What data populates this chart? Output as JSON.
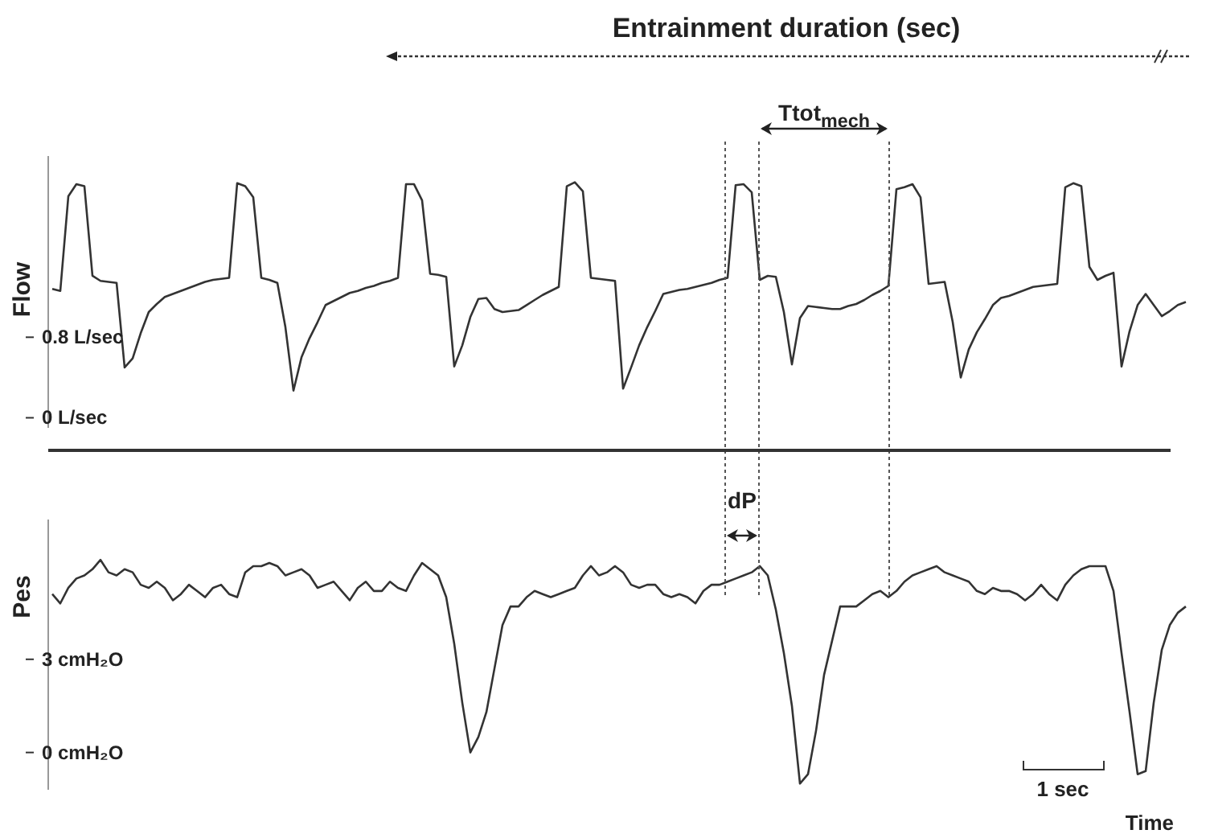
{
  "chart_data": [
    {
      "type": "line",
      "ylabel": "Flow",
      "annotations": [
        "Entrainment duration (sec)",
        "Ttot$_{mech}$"
      ],
      "ylim": [
        -0.1,
        2.6
      ],
      "yticks": [
        {
          "value": 0.8,
          "label": "0.8 L/sec"
        },
        {
          "value": 0,
          "label": "0 L/sec"
        }
      ],
      "tick_labels": "y",
      "line_style": "solid",
      "categories": [
        null,
        null,
        null,
        null,
        null,
        null,
        null,
        null,
        null,
        null,
        null,
        null,
        null,
        null,
        null,
        null,
        null,
        null,
        null,
        null,
        null,
        null,
        null,
        null,
        null,
        null,
        null,
        null,
        null,
        null,
        null,
        null,
        null,
        null,
        null,
        null,
        null,
        null,
        null,
        null,
        null,
        null,
        null,
        null,
        null,
        null,
        null,
        null,
        null,
        null,
        null,
        null,
        null,
        null,
        null,
        null,
        null,
        null,
        null,
        null,
        null,
        null,
        null,
        null,
        null,
        null,
        null,
        null,
        null,
        null,
        null,
        null,
        null,
        null,
        null,
        null,
        null,
        null,
        null,
        null,
        null,
        null,
        null,
        null,
        null,
        null,
        null,
        null,
        null,
        null,
        null,
        null,
        null,
        null,
        null,
        null,
        null,
        null,
        null,
        null,
        null,
        null,
        null,
        null,
        null,
        null,
        null,
        null,
        null,
        null,
        null,
        null,
        null,
        null,
        null,
        null,
        null,
        null,
        null,
        null,
        null,
        null,
        null,
        null,
        null,
        null,
        null,
        null,
        null,
        null,
        null,
        null,
        null,
        null,
        null,
        null,
        null,
        null,
        null,
        null,
        null,
        null
      ],
      "series": [
        {
          "color": "#333333",
          "values": [
            1.28,
            1.26,
            2.2,
            2.32,
            2.3,
            1.41,
            1.36,
            1.35,
            1.34,
            0.5,
            0.59,
            0.84,
            1.05,
            1.13,
            1.2,
            1.23,
            1.26,
            1.29,
            1.32,
            1.35,
            1.37,
            1.38,
            1.39,
            2.33,
            2.3,
            2.19,
            1.39,
            1.37,
            1.34,
            0.9,
            0.27,
            0.6,
            0.79,
            0.95,
            1.12,
            1.16,
            1.2,
            1.24,
            1.26,
            1.29,
            1.31,
            1.34,
            1.36,
            1.39,
            2.32,
            2.32,
            2.16,
            1.43,
            1.42,
            1.4,
            0.51,
            0.72,
            1.0,
            1.18,
            1.19,
            1.08,
            1.05,
            1.06,
            1.07,
            1.12,
            1.17,
            1.22,
            1.26,
            1.3,
            2.3,
            2.34,
            2.25,
            1.39,
            1.38,
            1.37,
            1.36,
            0.29,
            0.5,
            0.72,
            0.9,
            1.06,
            1.23,
            1.25,
            1.27,
            1.28,
            1.3,
            1.32,
            1.34,
            1.37,
            1.39,
            2.31,
            2.32,
            2.24,
            1.37,
            1.41,
            1.4,
            1.05,
            0.53,
            0.99,
            1.11,
            1.1,
            1.09,
            1.08,
            1.08,
            1.11,
            1.13,
            1.17,
            1.22,
            1.26,
            1.31,
            2.27,
            2.29,
            2.32,
            2.19,
            1.33,
            1.34,
            1.35,
            0.95,
            0.4,
            0.68,
            0.85,
            0.98,
            1.12,
            1.19,
            1.21,
            1.24,
            1.27,
            1.3,
            1.31,
            1.32,
            1.33,
            2.29,
            2.33,
            2.3,
            1.5,
            1.37,
            1.41,
            1.44,
            0.51,
            0.86,
            1.12,
            1.23,
            1.12,
            1.01,
            1.06,
            1.12,
            1.15
          ]
        }
      ]
    },
    {
      "type": "line",
      "ylabel": "Pes",
      "xlabel": "Time",
      "annotations": [
        "dP",
        "1 sec"
      ],
      "ylim": [
        -1.2,
        7.5
      ],
      "yticks": [
        {
          "value": 3,
          "label": "3  cmH₂O"
        },
        {
          "value": 0,
          "label": "0  cmH₂O"
        }
      ],
      "tick_labels": "y",
      "line_style": "solid",
      "categories": [
        null,
        null,
        null,
        null,
        null,
        null,
        null,
        null,
        null,
        null,
        null,
        null,
        null,
        null,
        null,
        null,
        null,
        null,
        null,
        null,
        null,
        null,
        null,
        null,
        null,
        null,
        null,
        null,
        null,
        null,
        null,
        null,
        null,
        null,
        null,
        null,
        null,
        null,
        null,
        null,
        null,
        null,
        null,
        null,
        null,
        null,
        null,
        null,
        null,
        null,
        null,
        null,
        null,
        null,
        null,
        null,
        null,
        null,
        null,
        null,
        null,
        null,
        null,
        null,
        null,
        null,
        null,
        null,
        null,
        null,
        null,
        null,
        null,
        null,
        null,
        null,
        null,
        null,
        null,
        null,
        null,
        null,
        null,
        null,
        null,
        null,
        null,
        null,
        null,
        null,
        null,
        null,
        null,
        null,
        null,
        null,
        null,
        null,
        null,
        null,
        null,
        null,
        null,
        null,
        null,
        null,
        null,
        null,
        null,
        null,
        null,
        null,
        null,
        null,
        null,
        null,
        null,
        null,
        null,
        null,
        null,
        null,
        null,
        null,
        null,
        null,
        null,
        null,
        null,
        null,
        null,
        null,
        null,
        null,
        null,
        null,
        null,
        null,
        null,
        null,
        null,
        null
      ],
      "series": [
        {
          "color": "#333333",
          "values": [
            5.1,
            4.8,
            5.3,
            5.6,
            5.7,
            5.9,
            6.2,
            5.8,
            5.7,
            5.9,
            5.8,
            5.4,
            5.3,
            5.5,
            5.3,
            4.9,
            5.1,
            5.4,
            5.2,
            5.0,
            5.3,
            5.4,
            5.1,
            5.0,
            5.8,
            6.0,
            6.0,
            6.1,
            6.0,
            5.7,
            5.8,
            5.9,
            5.7,
            5.3,
            5.4,
            5.5,
            5.2,
            4.9,
            5.3,
            5.5,
            5.2,
            5.2,
            5.5,
            5.3,
            5.2,
            5.7,
            6.1,
            5.9,
            5.7,
            5.0,
            3.5,
            1.6,
            0.0,
            0.5,
            1.3,
            2.7,
            4.1,
            4.7,
            4.7,
            5.0,
            5.2,
            5.1,
            5.0,
            5.1,
            5.2,
            5.3,
            5.7,
            6.0,
            5.7,
            5.8,
            6.0,
            5.8,
            5.4,
            5.3,
            5.4,
            5.4,
            5.1,
            5.0,
            5.1,
            5.0,
            4.8,
            5.2,
            5.4,
            5.4,
            5.5,
            5.6,
            5.7,
            5.8,
            6.0,
            5.7,
            4.6,
            3.2,
            1.5,
            -1.0,
            -0.7,
            0.7,
            2.5,
            3.6,
            4.7,
            4.7,
            4.7,
            4.9,
            5.1,
            5.2,
            5.0,
            5.2,
            5.5,
            5.7,
            5.8,
            5.9,
            6.0,
            5.8,
            5.7,
            5.6,
            5.5,
            5.2,
            5.1,
            5.3,
            5.2,
            5.2,
            5.1,
            4.9,
            5.1,
            5.4,
            5.1,
            4.9,
            5.4,
            5.7,
            5.9,
            6.0,
            6.0,
            6.0,
            5.2,
            3.2,
            1.3,
            -0.7,
            -0.6,
            1.6,
            3.3,
            4.1,
            4.5,
            4.7
          ]
        }
      ]
    }
  ]
}
